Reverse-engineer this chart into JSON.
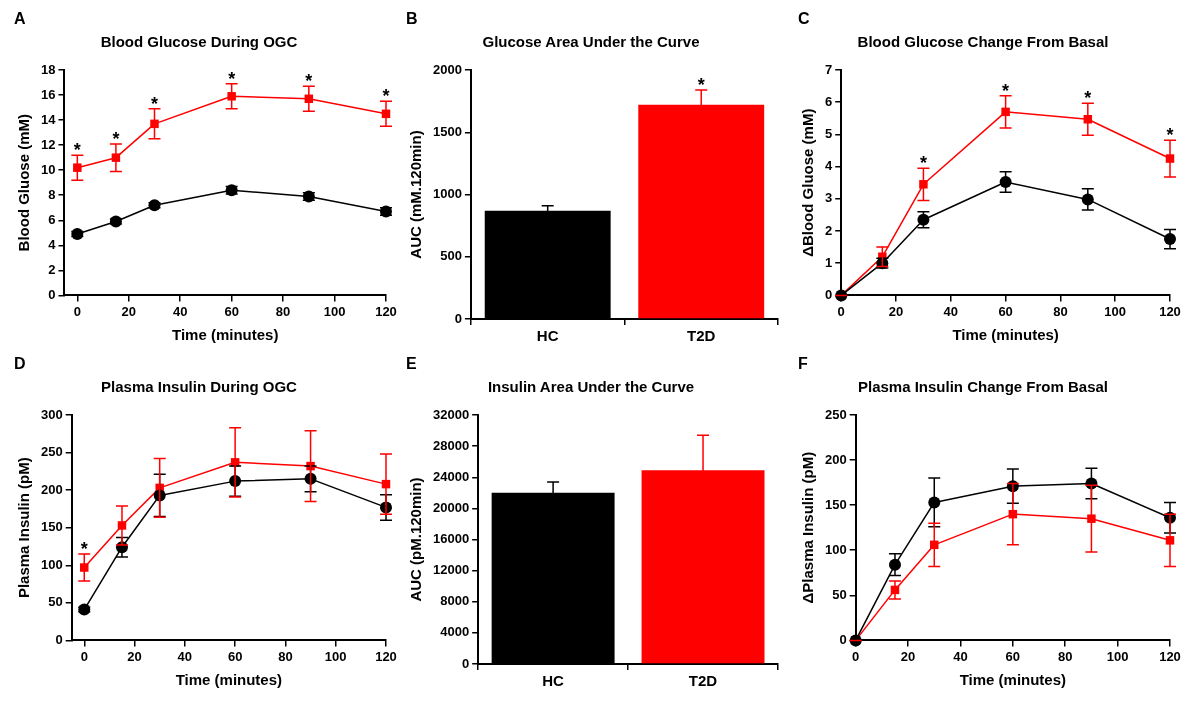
{
  "chart_data": [
    {
      "type": "line",
      "title": "Blood Glucose During OGC",
      "xlabel": "Time (minutes)",
      "ylabel": "Blood Gluose (mM)",
      "x": [
        0,
        15,
        30,
        60,
        90,
        120
      ],
      "xlim": [
        -5,
        120
      ],
      "xticks": [
        0,
        20,
        40,
        60,
        80,
        100,
        120
      ],
      "ylim": [
        0,
        18
      ],
      "yticks": [
        0,
        2,
        4,
        6,
        8,
        10,
        12,
        14,
        16,
        18
      ],
      "grid": false,
      "legend": false,
      "line_style": "solid",
      "series": [
        {
          "color": "#ff0000",
          "marker": "square",
          "values": [
            10.2,
            11.0,
            13.7,
            15.9,
            15.7,
            14.5
          ],
          "errors": [
            1.0,
            1.1,
            1.2,
            1.0,
            1.0,
            1.0
          ]
        },
        {
          "color": "#000000",
          "marker": "circle",
          "values": [
            4.9,
            5.9,
            7.2,
            8.4,
            7.9,
            6.7
          ],
          "errors": [
            0.2,
            0.2,
            0.2,
            0.3,
            0.3,
            0.3
          ]
        }
      ],
      "annotations": [
        "A",
        {
          "text": "*",
          "x": 0,
          "y": 11.2
        },
        {
          "text": "*",
          "x": 15,
          "y": 12.1
        },
        {
          "text": "*",
          "x": 30,
          "y": 14.9
        },
        {
          "text": "*",
          "x": 60,
          "y": 16.9
        },
        {
          "text": "*",
          "x": 90,
          "y": 16.7
        },
        {
          "text": "*",
          "x": 120,
          "y": 15.5
        }
      ]
    },
    {
      "type": "bar",
      "title": "Glucose Area Under the Curve",
      "ylabel": "AUC (mM.120min)",
      "categories": [
        "HC",
        "T2D"
      ],
      "values": [
        870,
        1720
      ],
      "errors": [
        40,
        120
      ],
      "colors": [
        "#000000",
        "#ff0000"
      ],
      "ylim": [
        0,
        2000
      ],
      "yticks": [
        0,
        500,
        1000,
        1500,
        2000
      ],
      "grid": false,
      "legend": false,
      "annotations": [
        "B",
        {
          "text": "*",
          "x": "T2D",
          "y": 1840
        }
      ]
    },
    {
      "type": "line",
      "title": "Blood Glucose Change From Basal",
      "xlabel": "Time (minutes)",
      "ylabel": "ΔBlood Gluose (mM)",
      "x": [
        0,
        15,
        30,
        60,
        90,
        120
      ],
      "xlim": [
        0,
        120
      ],
      "xticks": [
        0,
        20,
        40,
        60,
        80,
        100,
        120
      ],
      "ylim": [
        0,
        7
      ],
      "yticks": [
        0,
        1,
        2,
        3,
        4,
        5,
        6,
        7
      ],
      "grid": false,
      "legend": false,
      "line_style": "solid",
      "series": [
        {
          "color": "#000000",
          "marker": "circle",
          "values": [
            0,
            1.0,
            2.35,
            3.52,
            2.98,
            1.75
          ],
          "errors": [
            0,
            0.15,
            0.25,
            0.32,
            0.33,
            0.3
          ]
        },
        {
          "color": "#ff0000",
          "marker": "square",
          "values": [
            0,
            1.2,
            3.45,
            5.7,
            5.47,
            4.25
          ],
          "errors": [
            0,
            0.3,
            0.5,
            0.5,
            0.5,
            0.57
          ]
        }
      ],
      "annotations": [
        "C",
        {
          "text": "*",
          "x": 30,
          "y": 3.95
        },
        {
          "text": "*",
          "x": 60,
          "y": 6.2
        },
        {
          "text": "*",
          "x": 90,
          "y": 5.97
        },
        {
          "text": "*",
          "x": 120,
          "y": 4.82
        }
      ]
    },
    {
      "type": "line",
      "title": "Plasma Insulin During OGC",
      "xlabel": "Time (minutes)",
      "ylabel": "Plasma Insulin (pM)",
      "x": [
        0,
        15,
        30,
        60,
        90,
        120
      ],
      "xlim": [
        -5,
        120
      ],
      "xticks": [
        0,
        20,
        40,
        60,
        80,
        100,
        120
      ],
      "ylim": [
        0,
        300
      ],
      "yticks": [
        0,
        50,
        100,
        150,
        200,
        250,
        300
      ],
      "grid": false,
      "legend": false,
      "line_style": "solid",
      "series": [
        {
          "color": "#000000",
          "marker": "circle",
          "values": [
            41,
            124,
            193,
            212,
            215,
            177
          ],
          "errors": [
            3,
            13,
            28,
            20,
            17,
            17
          ]
        },
        {
          "color": "#ff0000",
          "marker": "square",
          "values": [
            97,
            153,
            203,
            237,
            232,
            208
          ],
          "errors": [
            18,
            26,
            39,
            46,
            47,
            40
          ]
        }
      ],
      "annotations": [
        "D",
        {
          "text": "*",
          "x": 0,
          "y": 115
        }
      ]
    },
    {
      "type": "bar",
      "title": "Insulin Area Under the Curve",
      "ylabel": "AUC (pM.120min)",
      "categories": [
        "HC",
        "T2D"
      ],
      "values": [
        22000,
        24900
      ],
      "errors": [
        1400,
        4500
      ],
      "colors": [
        "#000000",
        "#ff0000"
      ],
      "ylim": [
        0,
        32000
      ],
      "yticks": [
        0,
        4000,
        8000,
        12000,
        16000,
        20000,
        24000,
        28000,
        32000
      ],
      "grid": false,
      "legend": false,
      "annotations": [
        "E"
      ]
    },
    {
      "type": "line",
      "title": "Plasma Insulin Change From Basal",
      "xlabel": "Time (minutes)",
      "ylabel": "ΔPlasma Insulin (pM)",
      "x": [
        0,
        15,
        30,
        60,
        90,
        120
      ],
      "xlim": [
        0,
        120
      ],
      "xticks": [
        0,
        20,
        40,
        60,
        80,
        100,
        120
      ],
      "ylim": [
        0,
        250
      ],
      "yticks": [
        0,
        50,
        100,
        150,
        200,
        250
      ],
      "grid": false,
      "legend": false,
      "line_style": "solid",
      "series": [
        {
          "color": "#000000",
          "marker": "circle",
          "values": [
            0,
            84,
            153,
            171,
            174,
            136
          ],
          "errors": [
            0,
            12,
            27,
            19,
            17,
            17
          ]
        },
        {
          "color": "#ff0000",
          "marker": "square",
          "values": [
            0,
            56,
            106,
            140,
            135,
            111
          ],
          "errors": [
            0,
            10,
            24,
            34,
            37,
            29
          ]
        }
      ],
      "annotations": [
        "F"
      ]
    }
  ]
}
